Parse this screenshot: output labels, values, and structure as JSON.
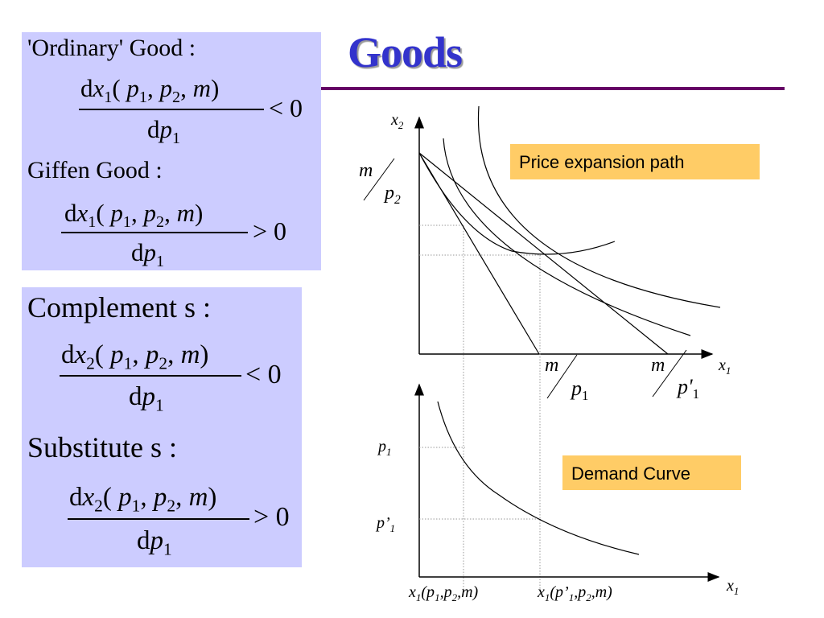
{
  "title": "Goods",
  "left_panel": {
    "ordinary_heading": "'Ordinary' Good :",
    "ordinary_num": "dx1(p1, p2, m)",
    "ordinary_den": "dp1",
    "ordinary_rel": "< 0",
    "giffen_heading": "Giffen  Good :",
    "giffen_num": "dx1(p1, p2, m)",
    "giffen_den": "dp1",
    "giffen_rel": "> 0",
    "complement_heading": "Complement s :",
    "complement_num": "dx2(p1, p2, m)",
    "complement_den": "dp1",
    "complement_rel": "< 0",
    "substitute_heading": "Substitute s :",
    "substitute_num": "dx2(p1, p2, m)",
    "substitute_den": "dp1",
    "substitute_rel": "> 0"
  },
  "top_chart": {
    "y_axis_label": "x2",
    "x_axis_label": "x1",
    "intercept_y": "m/p2",
    "intercept_x1": "m/p1",
    "intercept_x2": "m/p'1",
    "callout": "Price expansion path"
  },
  "bottom_chart": {
    "y_tick_high": "p1",
    "y_tick_low": "p'1",
    "x_tick_left": "x1(p1,p2,m)",
    "x_tick_right": "x1(p'1,p2,m)",
    "x_axis_label": "x1",
    "callout": "Demand Curve"
  },
  "colors": {
    "formula_box": "#ccccff",
    "title": "#3333cc",
    "rule": "#660066",
    "callout": "#ffcc66"
  }
}
